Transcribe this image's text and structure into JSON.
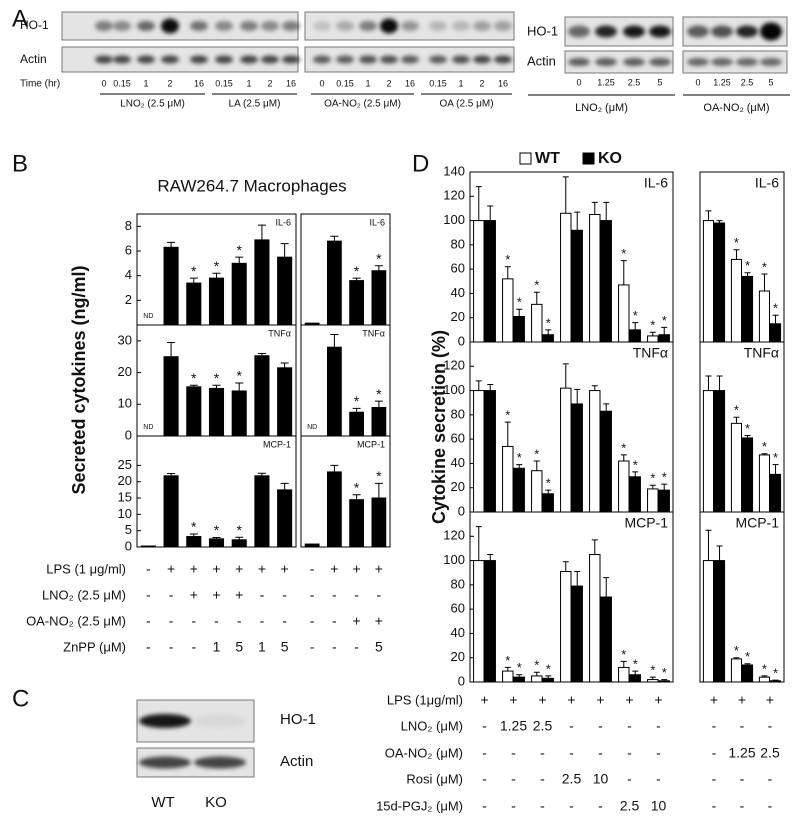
{
  "panel_a": {
    "label": "A",
    "left": {
      "rows": [
        "HO-1",
        "Actin"
      ],
      "time_label": "Time (hr)",
      "lanes": [
        "0",
        "0.15",
        "1",
        "2",
        "16",
        "0.15",
        "1",
        "2",
        "16",
        "0",
        "0.15",
        "1",
        "2",
        "16",
        "0.15",
        "1",
        "2",
        "16"
      ],
      "groups": [
        "LNO₂ (2.5 μM)",
        "LA (2.5 μM)",
        "OA-NO₂ (2.5 μM)",
        "OA (2.5 μM)"
      ]
    },
    "right": {
      "rows": [
        "HO-1",
        "Actin"
      ],
      "lanes": [
        "0",
        "1.25",
        "2.5",
        "5",
        "0",
        "1.25",
        "2.5",
        "5"
      ],
      "groups": [
        "LNO₂ (μM)",
        "OA-NO₂ (μM)"
      ]
    }
  },
  "panel_b": {
    "label": "B",
    "title": "RAW264.7 Macrophages",
    "y_label": "Secreted cytokines (ng/ml)",
    "conditions": {
      "labels": [
        "LPS (1 μg/ml)",
        "LNO₂ (2.5 μM)",
        "OA-NO₂ (2.5 μM)",
        "ZnPP (μM)"
      ],
      "rows": [
        [
          "-",
          "+",
          "+",
          "+",
          "+",
          "+",
          "+",
          "-",
          "+",
          "+",
          "+"
        ],
        [
          "-",
          "-",
          "+",
          "+",
          "+",
          "-",
          "-",
          "-",
          "-",
          "-",
          "-"
        ],
        [
          "-",
          "-",
          "-",
          "-",
          "-",
          "-",
          "-",
          "-",
          "-",
          "+",
          "+"
        ],
        [
          "-",
          "-",
          "-",
          "1",
          "5",
          "1",
          "5",
          "-",
          "-",
          "-",
          "5"
        ]
      ]
    }
  },
  "panel_c": {
    "label": "C",
    "rows": [
      "HO-1",
      "Actin"
    ],
    "lanes": [
      "WT",
      "KO"
    ]
  },
  "panel_d": {
    "label": "D",
    "y_label": "Cytokine secretion (%)",
    "conditions": {
      "labels": [
        "LPS (1μg/ml)",
        "LNO₂ (μM)",
        "OA-NO₂ (μM)",
        "Rosi (μM)",
        "15d-PGJ₂ (μM)"
      ],
      "rows": [
        [
          "+",
          "+",
          "+",
          "+",
          "+",
          "+",
          "+",
          "+",
          "+",
          "+"
        ],
        [
          "-",
          "1.25",
          "2.5",
          "-",
          "-",
          "-",
          "-",
          "-",
          "-",
          "-"
        ],
        [
          "-",
          "-",
          "-",
          "-",
          "-",
          "-",
          "-",
          "-",
          "1.25",
          "2.5"
        ],
        [
          "-",
          "-",
          "-",
          "2.5",
          "10",
          "-",
          "-",
          "-",
          "-",
          "-"
        ],
        [
          "-",
          "-",
          "-",
          "-",
          "-",
          "2.5",
          "10",
          "-",
          "-",
          "-"
        ]
      ]
    }
  },
  "significance_mark": "*",
  "chart_data": [
    {
      "type": "bar",
      "title": "IL-6",
      "color": "#000000",
      "ylim": [
        0,
        9
      ],
      "yticks": [
        2,
        4,
        6,
        8
      ],
      "values": [
        null,
        6.3,
        3.4,
        3.8,
        5.0,
        6.9,
        5.5
      ],
      "value_labels": [
        "ND",
        null,
        null,
        null,
        null,
        null,
        null
      ],
      "errors": [
        null,
        0.4,
        0.4,
        0.4,
        0.5,
        1.2,
        1.1
      ],
      "significant": [
        false,
        false,
        true,
        true,
        true,
        false,
        false
      ]
    },
    {
      "type": "bar",
      "title": "TNFα",
      "color": "#000000",
      "ylim": [
        0,
        35
      ],
      "yticks": [
        0,
        10,
        20,
        30
      ],
      "values": [
        null,
        25,
        15.5,
        15,
        14.2,
        25.3,
        21.5
      ],
      "value_labels": [
        "ND",
        null,
        null,
        null,
        null,
        null,
        null
      ],
      "errors": [
        null,
        4.5,
        0.5,
        1,
        2.5,
        0.7,
        1.5
      ],
      "significant": [
        false,
        false,
        true,
        true,
        true,
        false,
        false
      ]
    },
    {
      "type": "bar",
      "title": "MCP-1",
      "color": "#000000",
      "ylim": [
        0,
        34
      ],
      "yticks": [
        0,
        5,
        10,
        15,
        20,
        25
      ],
      "values": [
        0.3,
        21.8,
        3.2,
        2.5,
        2.2,
        21.8,
        17.5
      ],
      "errors": [
        null,
        0.7,
        0.8,
        0.4,
        0.8,
        0.8,
        2
      ],
      "significant": [
        false,
        false,
        true,
        true,
        true,
        false,
        false
      ]
    },
    {
      "type": "bar",
      "title": "IL-6",
      "color": "#000000",
      "ylim": [
        0,
        9
      ],
      "values": [
        0.15,
        6.8,
        3.6,
        4.4
      ],
      "errors": [
        null,
        0.4,
        0.2,
        0.4
      ],
      "significant": [
        false,
        false,
        true,
        true
      ]
    },
    {
      "type": "bar",
      "title": "TNFα",
      "color": "#000000",
      "ylim": [
        0,
        35
      ],
      "values": [
        null,
        28,
        7.5,
        9
      ],
      "value_labels": [
        "ND",
        null,
        null,
        null
      ],
      "errors": [
        null,
        4,
        1.2,
        2
      ],
      "significant": [
        false,
        false,
        true,
        true
      ]
    },
    {
      "type": "bar",
      "title": "MCP-1",
      "color": "#000000",
      "ylim": [
        0,
        34
      ],
      "values": [
        0.9,
        23,
        14.5,
        15
      ],
      "errors": [
        null,
        2,
        1.5,
        4.5
      ],
      "significant": [
        false,
        false,
        true,
        true
      ]
    },
    {
      "type": "grouped_bar",
      "title": "IL-6",
      "ylim": [
        0,
        140
      ],
      "yticks": [
        0,
        20,
        40,
        60,
        80,
        100,
        120,
        140
      ],
      "significant": [
        false,
        true,
        true,
        false,
        false,
        true,
        true
      ],
      "series": [
        {
          "name": "WT",
          "color": "#ffffff",
          "values": [
            100,
            52,
            31,
            106,
            105,
            47,
            5
          ],
          "errors": [
            28,
            10,
            10,
            30,
            10,
            20,
            3
          ]
        },
        {
          "name": "KO",
          "color": "#000000",
          "values": [
            100,
            21,
            6,
            92,
            100,
            10,
            6
          ],
          "errors": [
            12,
            6,
            4,
            15,
            15,
            6,
            6
          ]
        }
      ]
    },
    {
      "type": "grouped_bar",
      "title": "TNFα",
      "ylim": [
        0,
        140
      ],
      "yticks": [
        0,
        20,
        40,
        60,
        80,
        100,
        120
      ],
      "significant": [
        false,
        true,
        true,
        false,
        false,
        true,
        true
      ],
      "series": [
        {
          "color": "#ffffff",
          "values": [
            100,
            54,
            34,
            102,
            100,
            42,
            19
          ],
          "errors": [
            8,
            20,
            8,
            20,
            4,
            5,
            3
          ]
        },
        {
          "color": "#000000",
          "values": [
            100,
            36,
            15,
            89,
            83,
            29,
            18
          ],
          "errors": [
            5,
            3,
            3,
            12,
            6,
            4,
            5
          ]
        }
      ]
    },
    {
      "type": "grouped_bar",
      "title": "MCP-1",
      "ylim": [
        0,
        140
      ],
      "yticks": [
        0,
        20,
        40,
        60,
        80,
        100,
        120
      ],
      "significant": [
        false,
        true,
        true,
        false,
        false,
        true,
        true
      ],
      "series": [
        {
          "color": "#ffffff",
          "values": [
            100,
            9,
            5,
            91,
            105,
            12,
            2
          ],
          "errors": [
            28,
            3,
            3,
            8,
            12,
            5,
            2
          ]
        },
        {
          "color": "#000000",
          "values": [
            100,
            4,
            3,
            79,
            70,
            6,
            1
          ],
          "errors": [
            5,
            2,
            2,
            12,
            16,
            3,
            1
          ]
        }
      ]
    },
    {
      "type": "grouped_bar",
      "title": "IL-6",
      "ylim": [
        0,
        140
      ],
      "significant": [
        false,
        true,
        true
      ],
      "series": [
        {
          "color": "#ffffff",
          "values": [
            100,
            68,
            42
          ],
          "errors": [
            8,
            8,
            14
          ]
        },
        {
          "color": "#000000",
          "values": [
            98,
            54,
            15
          ],
          "errors": [
            2,
            3,
            7
          ]
        }
      ]
    },
    {
      "type": "grouped_bar",
      "title": "TNFα",
      "ylim": [
        0,
        140
      ],
      "significant": [
        false,
        true,
        true
      ],
      "series": [
        {
          "color": "#ffffff",
          "values": [
            100,
            73,
            47
          ],
          "errors": [
            12,
            5,
            1
          ]
        },
        {
          "color": "#000000",
          "values": [
            100,
            61,
            31
          ],
          "errors": [
            12,
            2,
            8
          ]
        }
      ]
    },
    {
      "type": "grouped_bar",
      "title": "MCP-1",
      "ylim": [
        0,
        140
      ],
      "significant": [
        false,
        true,
        true
      ],
      "series": [
        {
          "color": "#ffffff",
          "values": [
            100,
            19,
            4
          ],
          "errors": [
            25,
            1,
            1
          ]
        },
        {
          "color": "#000000",
          "values": [
            100,
            14,
            1
          ],
          "errors": [
            12,
            1,
            0.5
          ]
        }
      ]
    }
  ]
}
